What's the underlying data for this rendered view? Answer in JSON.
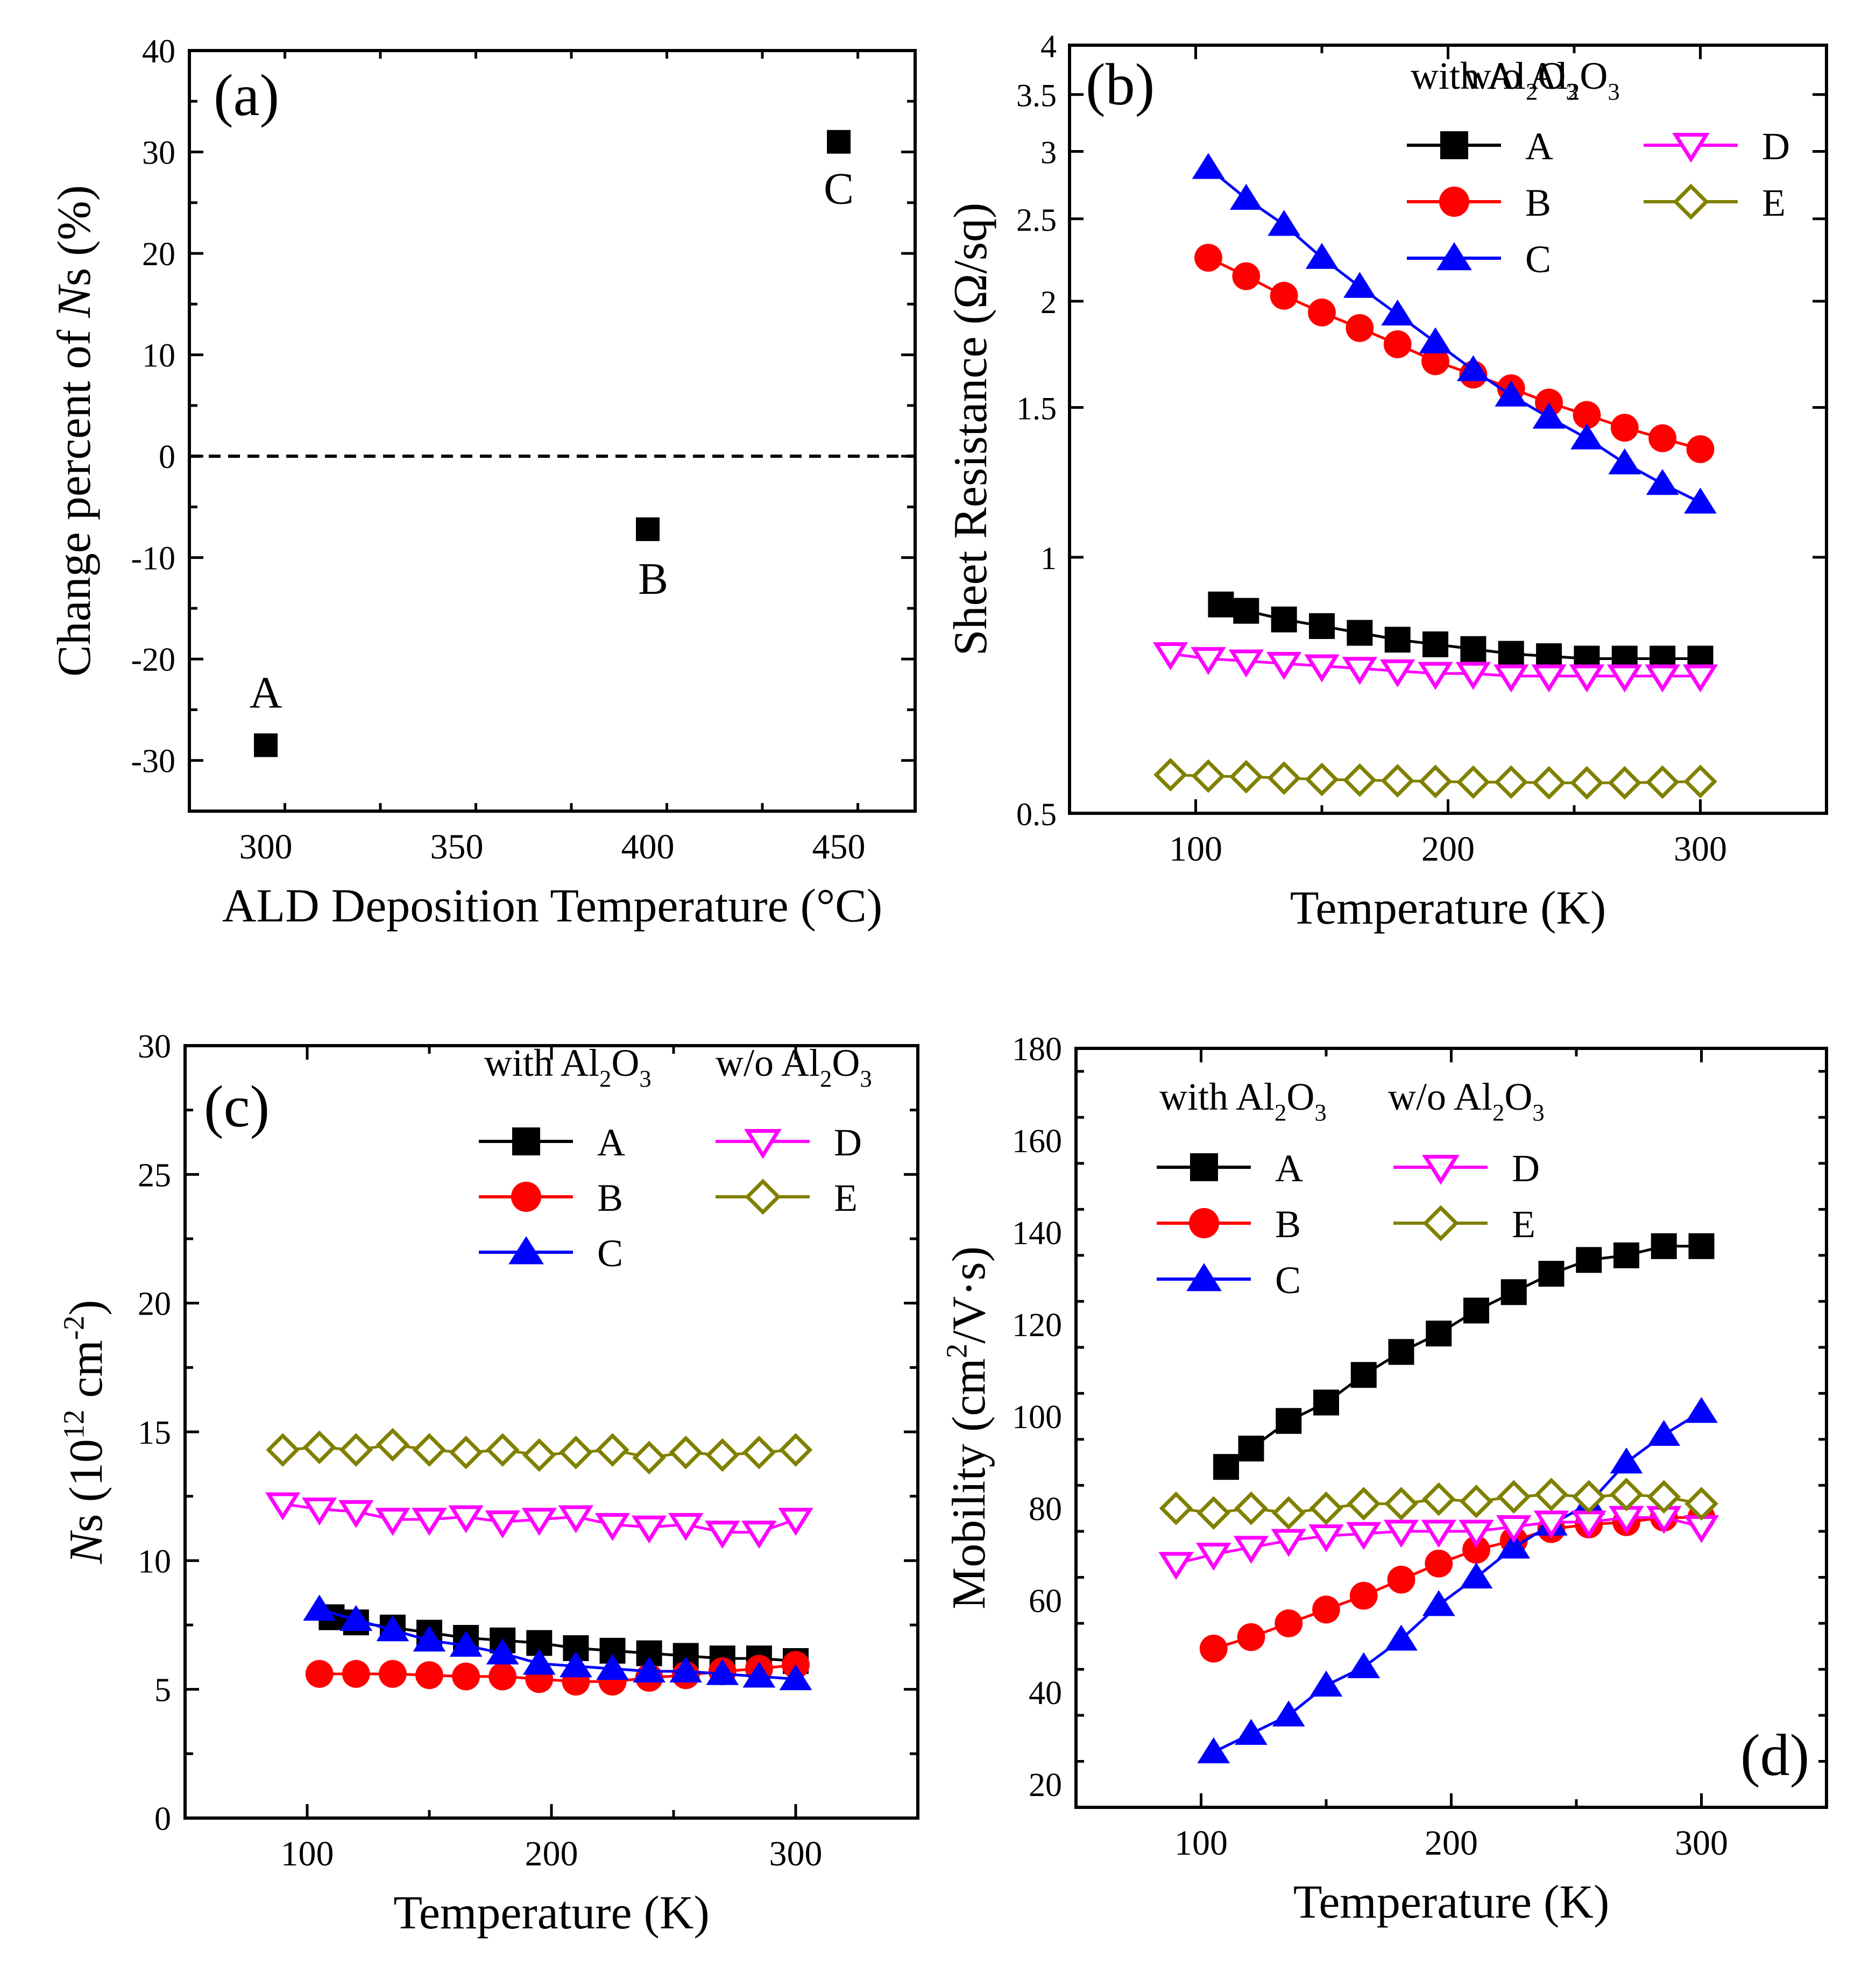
{
  "chart_data": [
    {
      "panel_label": "(a)",
      "type": "scatter",
      "xlabel": "ALD Deposition Temperature (°C)",
      "ylabel_parts": [
        "Change percent of ",
        "N",
        "s (%)"
      ],
      "xlim": [
        280,
        470
      ],
      "ylim": [
        -35,
        40
      ],
      "xticks": [
        300,
        350,
        400,
        450
      ],
      "yticks": [
        -30,
        -20,
        -10,
        0,
        10,
        20,
        30,
        40
      ],
      "zero_line": 0,
      "points": [
        {
          "label": "A",
          "x": 300,
          "y": -28.5
        },
        {
          "label": "B",
          "x": 400,
          "y": -7.2
        },
        {
          "label": "C",
          "x": 450,
          "y": 31
        }
      ]
    },
    {
      "panel_label": "(b)",
      "type": "line",
      "yscale": "log",
      "xlabel": "Temperature (K)",
      "ylabel": "Sheet Resistance (Ω/sq)",
      "xlim": [
        50,
        350
      ],
      "ylim": [
        0.5,
        4
      ],
      "xticks": [
        100,
        200,
        300
      ],
      "yticks": [
        0.5,
        1,
        1.5,
        2,
        2.5,
        3,
        3.5,
        4
      ],
      "legend_with": "with Al2O3",
      "legend_without": "w/o Al2O3",
      "series": [
        {
          "name": "A",
          "marker": "square",
          "color": "#000000",
          "x": [
            110,
            120,
            135,
            150,
            165,
            180,
            195,
            210,
            225,
            240,
            255,
            270,
            285,
            300
          ],
          "y": [
            0.88,
            0.865,
            0.845,
            0.83,
            0.815,
            0.8,
            0.79,
            0.78,
            0.77,
            0.765,
            0.76,
            0.76,
            0.76,
            0.76
          ]
        },
        {
          "name": "B",
          "marker": "circle",
          "color": "#ff0000",
          "x": [
            105,
            120,
            135,
            150,
            165,
            180,
            195,
            210,
            225,
            240,
            255,
            270,
            285,
            300
          ],
          "y": [
            2.25,
            2.14,
            2.03,
            1.94,
            1.86,
            1.78,
            1.7,
            1.64,
            1.58,
            1.52,
            1.47,
            1.42,
            1.38,
            1.34
          ]
        },
        {
          "name": "C",
          "marker": "triangle-up",
          "color": "#0000ff",
          "x": [
            105,
            120,
            135,
            150,
            165,
            180,
            195,
            210,
            225,
            240,
            255,
            270,
            285,
            300
          ],
          "y": [
            2.87,
            2.64,
            2.46,
            2.25,
            2.08,
            1.93,
            1.79,
            1.66,
            1.55,
            1.46,
            1.38,
            1.29,
            1.22,
            1.16
          ]
        },
        {
          "name": "D",
          "marker": "triangle-down-open",
          "color": "#ff00ff",
          "x": [
            90,
            105,
            120,
            135,
            150,
            165,
            180,
            195,
            210,
            225,
            240,
            255,
            270,
            285,
            300
          ],
          "y": [
            0.77,
            0.76,
            0.755,
            0.75,
            0.745,
            0.74,
            0.735,
            0.73,
            0.73,
            0.725,
            0.725,
            0.725,
            0.725,
            0.725,
            0.725
          ]
        },
        {
          "name": "E",
          "marker": "diamond-open",
          "color": "#808000",
          "x": [
            90,
            105,
            120,
            135,
            150,
            165,
            180,
            195,
            210,
            225,
            240,
            255,
            270,
            285,
            300
          ],
          "y": [
            0.555,
            0.553,
            0.552,
            0.55,
            0.548,
            0.547,
            0.546,
            0.545,
            0.544,
            0.544,
            0.543,
            0.543,
            0.543,
            0.544,
            0.545
          ]
        }
      ]
    },
    {
      "panel_label": "(c)",
      "type": "line",
      "xlabel": "Temperature (K)",
      "ylabel_parts": [
        "N",
        "s (10",
        "12",
        " cm",
        "-2",
        ")"
      ],
      "xlim": [
        50,
        350
      ],
      "ylim": [
        0,
        30
      ],
      "xticks": [
        100,
        200,
        300
      ],
      "yticks": [
        0,
        5,
        10,
        15,
        20,
        25,
        30
      ],
      "legend_with": "with Al2O3",
      "legend_without": "w/o Al2O3",
      "series": [
        {
          "name": "A",
          "marker": "square",
          "color": "#000000",
          "x": [
            110,
            120,
            135,
            150,
            165,
            180,
            195,
            210,
            225,
            240,
            255,
            270,
            285,
            300
          ],
          "y": [
            7.8,
            7.6,
            7.4,
            7.2,
            7.0,
            6.9,
            6.8,
            6.6,
            6.5,
            6.4,
            6.3,
            6.2,
            6.2,
            6.1
          ]
        },
        {
          "name": "B",
          "marker": "circle",
          "color": "#ff0000",
          "x": [
            105,
            120,
            135,
            150,
            165,
            180,
            195,
            210,
            225,
            240,
            255,
            270,
            285,
            300
          ],
          "y": [
            5.6,
            5.6,
            5.6,
            5.55,
            5.5,
            5.5,
            5.4,
            5.3,
            5.3,
            5.45,
            5.55,
            5.7,
            5.8,
            5.95
          ]
        },
        {
          "name": "C",
          "marker": "triangle-up",
          "color": "#0000ff",
          "x": [
            105,
            120,
            135,
            150,
            165,
            180,
            195,
            210,
            225,
            240,
            255,
            270,
            285,
            300
          ],
          "y": [
            8.1,
            7.7,
            7.3,
            6.9,
            6.7,
            6.4,
            6.0,
            5.9,
            5.8,
            5.7,
            5.7,
            5.6,
            5.5,
            5.4
          ]
        },
        {
          "name": "D",
          "marker": "triangle-down-open",
          "color": "#ff00ff",
          "x": [
            90,
            105,
            120,
            135,
            150,
            165,
            180,
            195,
            210,
            225,
            240,
            255,
            270,
            285,
            300
          ],
          "y": [
            12.2,
            12.0,
            11.9,
            11.6,
            11.6,
            11.7,
            11.5,
            11.6,
            11.7,
            11.4,
            11.3,
            11.4,
            11.1,
            11.1,
            11.6
          ]
        },
        {
          "name": "E",
          "marker": "diamond-open",
          "color": "#808000",
          "x": [
            90,
            105,
            120,
            135,
            150,
            165,
            180,
            195,
            210,
            225,
            240,
            255,
            270,
            285,
            300
          ],
          "y": [
            14.3,
            14.4,
            14.3,
            14.5,
            14.3,
            14.2,
            14.3,
            14.1,
            14.2,
            14.3,
            14.0,
            14.2,
            14.1,
            14.2,
            14.3
          ]
        }
      ]
    },
    {
      "panel_label": "(d)",
      "type": "line",
      "xlabel": "Temperature (K)",
      "ylabel_parts": [
        "Mobility (cm",
        "2",
        "/V·s)"
      ],
      "xlim": [
        50,
        350
      ],
      "ylim": [
        15,
        180
      ],
      "xticks": [
        100,
        200,
        300
      ],
      "yticks": [
        20,
        40,
        60,
        80,
        100,
        120,
        140,
        160,
        180
      ],
      "legend_with": "with Al2O3",
      "legend_without": "w/o Al2O3",
      "series": [
        {
          "name": "A",
          "marker": "square",
          "color": "#000000",
          "x": [
            110,
            120,
            135,
            150,
            165,
            180,
            195,
            210,
            225,
            240,
            255,
            270,
            285,
            300
          ],
          "y": [
            89,
            93,
            99,
            103,
            109,
            114,
            118,
            123,
            127,
            131,
            134,
            135,
            137,
            137
          ]
        },
        {
          "name": "B",
          "marker": "circle",
          "color": "#ff0000",
          "x": [
            105,
            120,
            135,
            150,
            165,
            180,
            195,
            210,
            225,
            240,
            255,
            270,
            285,
            300
          ],
          "y": [
            49.5,
            52,
            55,
            58,
            61,
            64.5,
            68,
            71,
            73,
            75.5,
            76.5,
            77,
            78,
            78
          ]
        },
        {
          "name": "C",
          "marker": "triangle-up",
          "color": "#0000ff",
          "x": [
            105,
            120,
            135,
            150,
            165,
            180,
            195,
            210,
            225,
            240,
            255,
            270,
            285,
            300
          ],
          "y": [
            27,
            31,
            35,
            41.5,
            45.5,
            51.5,
            59,
            65,
            71.5,
            76.5,
            81,
            90,
            96,
            101
          ]
        },
        {
          "name": "D",
          "marker": "triangle-down-open",
          "color": "#ff00ff",
          "x": [
            90,
            105,
            120,
            135,
            150,
            165,
            180,
            195,
            210,
            225,
            240,
            255,
            270,
            285,
            300
          ],
          "y": [
            68,
            70,
            71.5,
            73,
            74,
            74.5,
            75,
            75,
            75,
            76,
            77,
            77,
            78,
            78,
            76
          ]
        },
        {
          "name": "E",
          "marker": "diamond-open",
          "color": "#808000",
          "x": [
            90,
            105,
            120,
            135,
            150,
            165,
            180,
            195,
            210,
            225,
            240,
            255,
            270,
            285,
            300
          ],
          "y": [
            80,
            79,
            80,
            79,
            80,
            81,
            81,
            82,
            81.5,
            82.5,
            83,
            82.5,
            83,
            82.5,
            81
          ]
        }
      ]
    }
  ]
}
